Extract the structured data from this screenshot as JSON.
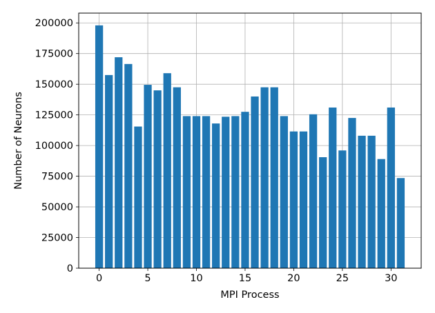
{
  "chart_data": {
    "type": "bar",
    "xlabel": "MPI Process",
    "ylabel": "Number of Neurons",
    "xlim": [
      -2.1,
      33.1
    ],
    "ylim": [
      0,
      208000
    ],
    "grid": true,
    "bar_color": "#1f77b4",
    "x_ticks": [
      0,
      5,
      10,
      15,
      20,
      25,
      30
    ],
    "y_ticks": [
      0,
      25000,
      50000,
      75000,
      100000,
      125000,
      150000,
      175000,
      200000
    ],
    "categories": [
      0,
      1,
      2,
      3,
      4,
      5,
      6,
      7,
      8,
      9,
      10,
      11,
      12,
      13,
      14,
      15,
      16,
      17,
      18,
      19,
      20,
      21,
      22,
      23,
      24,
      25,
      26,
      27,
      28,
      29,
      30,
      31
    ],
    "values": [
      198000,
      157500,
      172000,
      166500,
      115500,
      149500,
      145000,
      159000,
      147500,
      124000,
      124000,
      124000,
      118000,
      123500,
      124000,
      127500,
      140000,
      147500,
      147500,
      124000,
      111500,
      111500,
      125500,
      90500,
      131000,
      96000,
      122500,
      108000,
      108000,
      89000,
      131000,
      73500
    ]
  }
}
